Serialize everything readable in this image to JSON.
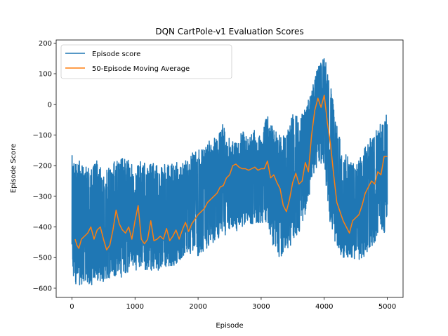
{
  "chart_data": {
    "type": "line",
    "title": "DQN CartPole-v1 Evaluation Scores",
    "xlabel": "Episode",
    "ylabel": "Episode Score",
    "xlim": [
      -250,
      5250
    ],
    "ylim": [
      -630,
      210
    ],
    "xticks": [
      0,
      1000,
      2000,
      3000,
      4000,
      5000
    ],
    "yticks": [
      -600,
      -500,
      -400,
      -300,
      -200,
      -100,
      0,
      100,
      200
    ],
    "grid": false,
    "legend_position": "upper-left",
    "series": [
      {
        "name": "Episode score",
        "color": "#1f77b4",
        "band": {
          "x": [
            0,
            100,
            200,
            300,
            400,
            500,
            600,
            700,
            800,
            900,
            1000,
            1100,
            1200,
            1300,
            1400,
            1500,
            1600,
            1700,
            1800,
            1900,
            2000,
            2100,
            2200,
            2300,
            2400,
            2500,
            2600,
            2700,
            2800,
            2900,
            3000,
            3100,
            3200,
            3300,
            3400,
            3500,
            3600,
            3700,
            3800,
            3900,
            4000,
            4100,
            4200,
            4300,
            4400,
            4500,
            4600,
            4700,
            4800,
            4900,
            5000
          ],
          "upper": [
            -165,
            -180,
            -200,
            -205,
            -180,
            -230,
            -200,
            -170,
            -175,
            -180,
            -210,
            -175,
            -200,
            -190,
            -185,
            -200,
            -190,
            -190,
            -180,
            -160,
            -140,
            -150,
            -110,
            -110,
            -60,
            -110,
            -120,
            -70,
            -110,
            -80,
            -100,
            -30,
            -70,
            -100,
            -100,
            -30,
            -40,
            -10,
            60,
            120,
            170,
            60,
            -60,
            -160,
            -170,
            -200,
            -160,
            -120,
            -90,
            -60,
            -30
          ],
          "lower": [
            -585,
            -590,
            -585,
            -590,
            -580,
            -580,
            -570,
            -560,
            -565,
            -550,
            -540,
            -545,
            -540,
            -545,
            -540,
            -530,
            -530,
            -510,
            -500,
            -490,
            -500,
            -480,
            -460,
            -440,
            -430,
            -420,
            -420,
            -400,
            -390,
            -390,
            -390,
            -400,
            -470,
            -505,
            -480,
            -450,
            -430,
            -360,
            -260,
            -190,
            -210,
            -400,
            -480,
            -500,
            -505,
            -505,
            -510,
            -480,
            -450,
            -430,
            -410
          ]
        }
      },
      {
        "name": "50-Episode Moving Average",
        "color": "#ff7f0e",
        "x": [
          50,
          80,
          110,
          150,
          200,
          250,
          300,
          350,
          400,
          450,
          500,
          550,
          600,
          650,
          700,
          750,
          800,
          850,
          900,
          950,
          1000,
          1050,
          1100,
          1150,
          1200,
          1250,
          1300,
          1350,
          1400,
          1450,
          1500,
          1550,
          1600,
          1650,
          1700,
          1750,
          1800,
          1850,
          1900,
          1950,
          2000,
          2050,
          2100,
          2150,
          2200,
          2250,
          2300,
          2350,
          2400,
          2450,
          2500,
          2550,
          2600,
          2650,
          2700,
          2750,
          2800,
          2850,
          2900,
          2950,
          3000,
          3050,
          3100,
          3150,
          3200,
          3250,
          3300,
          3350,
          3400,
          3450,
          3500,
          3550,
          3600,
          3650,
          3700,
          3750,
          3800,
          3850,
          3900,
          3950,
          4000,
          4050,
          4100,
          4150,
          4200,
          4250,
          4300,
          4350,
          4400,
          4450,
          4500,
          4550,
          4600,
          4650,
          4700,
          4750,
          4800,
          4850,
          4900,
          4950,
          5000
        ],
        "y": [
          -440,
          -460,
          -470,
          -440,
          -430,
          -420,
          -400,
          -440,
          -410,
          -400,
          -440,
          -475,
          -460,
          -410,
          -345,
          -390,
          -410,
          -420,
          -400,
          -440,
          -380,
          -330,
          -440,
          -455,
          -440,
          -380,
          -445,
          -440,
          -430,
          -440,
          -405,
          -445,
          -430,
          -410,
          -440,
          -410,
          -385,
          -415,
          -390,
          -375,
          -360,
          -350,
          -340,
          -320,
          -310,
          -300,
          -290,
          -270,
          -265,
          -240,
          -230,
          -200,
          -195,
          -205,
          -210,
          -210,
          -215,
          -210,
          -205,
          -215,
          -210,
          -210,
          -185,
          -240,
          -230,
          -255,
          -275,
          -330,
          -350,
          -310,
          -255,
          -225,
          -260,
          -250,
          -190,
          -220,
          -100,
          -20,
          20,
          -10,
          30,
          -60,
          -130,
          -230,
          -320,
          -350,
          -380,
          -400,
          -420,
          -380,
          -370,
          -360,
          -330,
          -290,
          -270,
          -250,
          -260,
          -220,
          -230,
          -170,
          -170
        ]
      }
    ]
  }
}
